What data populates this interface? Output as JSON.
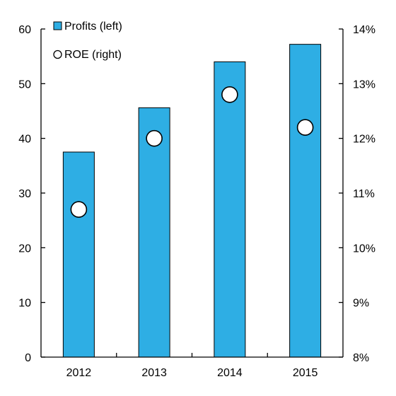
{
  "chart_data": {
    "type": "bar",
    "categories": [
      "2012",
      "2013",
      "2014",
      "2015"
    ],
    "series": [
      {
        "name": "Profits (left)",
        "type": "bar",
        "axis": "left",
        "values": [
          37.5,
          45.6,
          54.0,
          57.2
        ],
        "color": "#2eaee4"
      },
      {
        "name": "ROE (right)",
        "type": "scatter",
        "axis": "right",
        "values": [
          10.7,
          12.0,
          12.8,
          12.2
        ],
        "color": "#ffffff"
      }
    ],
    "left_axis": {
      "ylim": [
        0,
        60
      ],
      "ticks": [
        0,
        10,
        20,
        30,
        40,
        50,
        60
      ],
      "tick_labels": [
        "0",
        "10",
        "20",
        "30",
        "40",
        "50",
        "60"
      ]
    },
    "right_axis": {
      "ylim": [
        8,
        14
      ],
      "ticks": [
        8,
        9,
        10,
        11,
        12,
        13,
        14
      ],
      "tick_labels": [
        "8%",
        "9%",
        "10%",
        "11%",
        "12%",
        "13%",
        "14%"
      ]
    },
    "legend": {
      "placement": "top-left",
      "entries": [
        "Profits (left)",
        "ROE (right)"
      ]
    },
    "grid": false
  }
}
